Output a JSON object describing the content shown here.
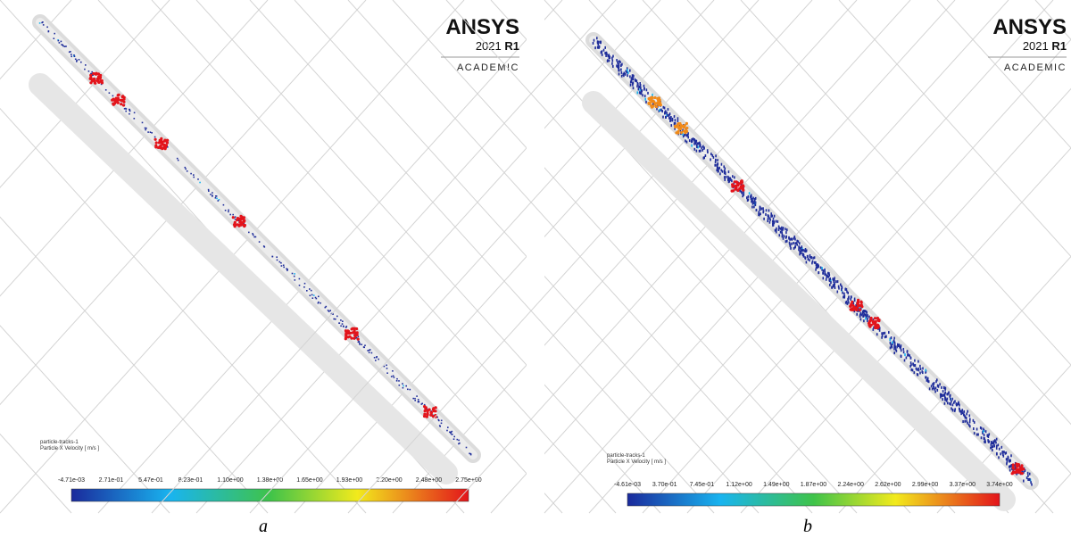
{
  "panels": [
    {
      "label": "a",
      "logo": {
        "brand": "ANSYS",
        "year": "2021",
        "release": "R1",
        "edition": "ACADEMIC"
      },
      "legend": {
        "title": "particle-tracks-1",
        "variable": "Particle X Velocity [ m/s ]",
        "ticks": [
          "-4.71e-03",
          "2.71e-01",
          "5.47e-01",
          "8.23e-01",
          "1.10e+00",
          "1.38e+00",
          "1.65e+00",
          "1.93e+00",
          "2.20e+00",
          "2.48e+00",
          "2.75e+00"
        ]
      }
    },
    {
      "label": "b",
      "logo": {
        "brand": "ANSYS",
        "year": "2021",
        "release": "R1",
        "edition": "ACADEMIC"
      },
      "legend": {
        "title": "particle-tracks-1",
        "variable": "Particle X Velocity [ m/s ]",
        "ticks": [
          "-4.61e-03",
          "3.70e-01",
          "7.45e-01",
          "1.12e+00",
          "1.49e+00",
          "1.87e+00",
          "2.24e+00",
          "2.62e+00",
          "2.99e+00",
          "3.37e+00",
          "3.74e+00"
        ]
      }
    }
  ]
}
